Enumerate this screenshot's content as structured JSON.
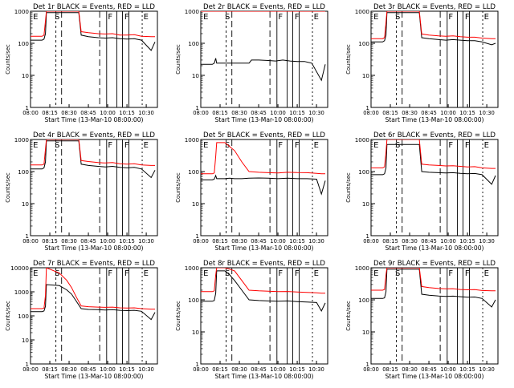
{
  "figure": {
    "xlabel": "Start Time (13-Mar-10 08:00:00)",
    "ylabel": "Counts/sec",
    "x_ticks": [
      "08:00",
      "08:15",
      "08:30",
      "08:45",
      "10:00",
      "10:15",
      "10:30"
    ],
    "y_ticks": [
      "1",
      "10",
      "100",
      "1000"
    ],
    "y_ticks_extended": [
      "1",
      "10",
      "100",
      "1000",
      "10000"
    ],
    "region_letters": [
      "E",
      "S",
      "F",
      "F",
      "E"
    ],
    "colors": {
      "events": "#000000",
      "lld": "#ff0000",
      "axes": "#000000",
      "background": "#ffffff"
    }
  },
  "chart_data": [
    {
      "type": "line",
      "title": "Det 1r BLACK = Events, RED = LLD",
      "yscale": "log",
      "ylim": [
        1,
        1000
      ],
      "x_hours": [
        8.0,
        8.24,
        8.28,
        8.31,
        8.33,
        9.0,
        9.05,
        9.2,
        9.4,
        9.55,
        9.7,
        9.85,
        10.0,
        10.15,
        10.3,
        10.5,
        10.58
      ],
      "series": [
        {
          "name": "Events",
          "values": [
            125,
            125,
            135,
            200,
            900,
            900,
            180,
            160,
            150,
            145,
            150,
            140,
            135,
            140,
            125,
            60,
            110
          ]
        },
        {
          "name": "LLD",
          "values": [
            165,
            165,
            180,
            500,
            1000,
            1000,
            230,
            215,
            200,
            195,
            200,
            180,
            180,
            185,
            165,
            160,
            160
          ]
        }
      ]
    },
    {
      "type": "line",
      "title": "Det 2r BLACK = Events, RED = LLD",
      "yscale": "log",
      "ylim": [
        1,
        1000
      ],
      "x_hours": [
        8.0,
        8.24,
        8.28,
        8.31,
        8.33,
        9.0,
        9.05,
        9.2,
        9.4,
        9.55,
        9.7,
        9.85,
        10.0,
        10.15,
        10.3,
        10.5,
        10.58
      ],
      "series": [
        {
          "name": "Events",
          "values": [
            22,
            22,
            24,
            34,
            24,
            24,
            30,
            30,
            29,
            28,
            30,
            28,
            27,
            27,
            24,
            7,
            22
          ]
        },
        {
          "name": "LLD",
          "values": [
            1000,
            1000,
            1000,
            1000,
            1000,
            1000,
            1000,
            1000,
            1000,
            1000,
            1000,
            1000,
            1000,
            1000,
            1000,
            1000,
            1000
          ]
        }
      ]
    },
    {
      "type": "line",
      "title": "Det 3r BLACK = Events, RED = LLD",
      "yscale": "log",
      "ylim": [
        1,
        1000
      ],
      "x_hours": [
        8.0,
        8.24,
        8.28,
        8.31,
        8.33,
        9.0,
        9.05,
        9.2,
        9.4,
        9.55,
        9.7,
        9.85,
        10.0,
        10.15,
        10.3,
        10.5,
        10.58
      ],
      "series": [
        {
          "name": "Events",
          "values": [
            110,
            110,
            120,
            180,
            900,
            900,
            150,
            140,
            130,
            125,
            130,
            125,
            120,
            120,
            110,
            90,
            100
          ]
        },
        {
          "name": "LLD",
          "values": [
            140,
            140,
            150,
            450,
            1000,
            1000,
            195,
            180,
            170,
            165,
            170,
            160,
            155,
            155,
            145,
            140,
            140
          ]
        }
      ]
    },
    {
      "type": "line",
      "title": "Det 4r BLACK = Events, RED = LLD",
      "yscale": "log",
      "ylim": [
        1,
        1000
      ],
      "x_hours": [
        8.0,
        8.24,
        8.28,
        8.31,
        8.33,
        9.0,
        9.05,
        9.2,
        9.4,
        9.55,
        9.7,
        9.85,
        10.0,
        10.15,
        10.3,
        10.5,
        10.58
      ],
      "series": [
        {
          "name": "Events",
          "values": [
            120,
            120,
            130,
            200,
            900,
            900,
            170,
            155,
            145,
            140,
            145,
            135,
            130,
            135,
            120,
            65,
            110
          ]
        },
        {
          "name": "LLD",
          "values": [
            160,
            160,
            170,
            500,
            1000,
            1000,
            220,
            205,
            190,
            185,
            190,
            175,
            170,
            175,
            160,
            155,
            155
          ]
        }
      ]
    },
    {
      "type": "line",
      "title": "Det 5r BLACK = Events, RED = LLD",
      "yscale": "log",
      "ylim": [
        1,
        1000
      ],
      "x_hours": [
        8.0,
        8.24,
        8.28,
        8.31,
        8.33,
        8.5,
        8.6,
        8.7,
        8.85,
        9.0,
        9.2,
        9.4,
        9.6,
        9.8,
        10.0,
        10.2,
        10.4,
        10.5,
        10.58
      ],
      "series": [
        {
          "name": "Events",
          "values": [
            55,
            55,
            58,
            75,
            60,
            60,
            62,
            60,
            60,
            62,
            63,
            62,
            60,
            62,
            60,
            60,
            58,
            20,
            52
          ]
        },
        {
          "name": "LLD",
          "values": [
            85,
            85,
            90,
            300,
            800,
            800,
            600,
            450,
            200,
            100,
            95,
            92,
            90,
            95,
            93,
            92,
            88,
            85,
            85
          ]
        }
      ]
    },
    {
      "type": "line",
      "title": "Det 6r BLACK = Events, RED = LLD",
      "yscale": "log",
      "ylim": [
        1,
        1000
      ],
      "x_hours": [
        8.0,
        8.24,
        8.28,
        8.31,
        8.33,
        9.0,
        9.05,
        9.2,
        9.4,
        9.55,
        9.7,
        9.85,
        10.0,
        10.15,
        10.3,
        10.5,
        10.58
      ],
      "series": [
        {
          "name": "Events",
          "values": [
            80,
            80,
            85,
            130,
            700,
            700,
            100,
            95,
            92,
            90,
            92,
            88,
            85,
            87,
            80,
            40,
            75
          ]
        },
        {
          "name": "LLD",
          "values": [
            130,
            130,
            140,
            400,
            1000,
            1000,
            170,
            160,
            155,
            150,
            152,
            145,
            140,
            142,
            130,
            125,
            125
          ]
        }
      ]
    },
    {
      "type": "line",
      "title": "Det 7r BLACK = Events, RED = LLD",
      "yscale": "log",
      "ylim": [
        1,
        10000
      ],
      "x_hours": [
        8.0,
        8.24,
        8.28,
        8.31,
        8.33,
        8.6,
        8.75,
        8.85,
        8.95,
        9.05,
        9.2,
        9.4,
        9.55,
        9.7,
        9.85,
        10.0,
        10.15,
        10.3,
        10.5,
        10.58
      ],
      "series": [
        {
          "name": "Events",
          "values": [
            150,
            150,
            160,
            250,
            2000,
            1800,
            1200,
            800,
            400,
            200,
            185,
            180,
            175,
            180,
            170,
            165,
            170,
            155,
            70,
            140
          ]
        },
        {
          "name": "LLD",
          "values": [
            200,
            200,
            210,
            700,
            10000,
            6000,
            3000,
            1500,
            600,
            260,
            240,
            230,
            225,
            230,
            215,
            210,
            215,
            200,
            190,
            190
          ]
        }
      ]
    },
    {
      "type": "line",
      "title": "Det 8r BLACK = Events, RED = LLD",
      "yscale": "log",
      "ylim": [
        1,
        1000
      ],
      "x_hours": [
        8.0,
        8.24,
        8.28,
        8.31,
        8.33,
        8.5,
        8.6,
        8.7,
        8.85,
        9.0,
        9.2,
        9.4,
        9.6,
        9.8,
        10.0,
        10.2,
        10.4,
        10.5,
        10.58
      ],
      "series": [
        {
          "name": "Events",
          "values": [
            90,
            90,
            95,
            160,
            800,
            800,
            600,
            400,
            200,
            100,
            95,
            92,
            90,
            92,
            88,
            85,
            82,
            45,
            80
          ]
        },
        {
          "name": "LLD",
          "values": [
            180,
            180,
            190,
            600,
            1000,
            1000,
            900,
            800,
            400,
            200,
            190,
            185,
            180,
            182,
            175,
            170,
            165,
            160,
            160
          ]
        }
      ]
    },
    {
      "type": "line",
      "title": "Det 9r BLACK = Events, RED = LLD",
      "yscale": "log",
      "ylim": [
        1,
        1000
      ],
      "x_hours": [
        8.0,
        8.24,
        8.28,
        8.31,
        8.33,
        9.0,
        9.05,
        9.2,
        9.4,
        9.55,
        9.7,
        9.85,
        10.0,
        10.15,
        10.3,
        10.5,
        10.58
      ],
      "series": [
        {
          "name": "Events",
          "values": [
            110,
            110,
            115,
            180,
            900,
            900,
            150,
            140,
            132,
            128,
            130,
            125,
            120,
            122,
            110,
            60,
            100
          ]
        },
        {
          "name": "LLD",
          "values": [
            200,
            200,
            210,
            600,
            1000,
            1000,
            260,
            240,
            225,
            220,
            222,
            210,
            205,
            208,
            195,
            190,
            190
          ]
        }
      ]
    }
  ]
}
